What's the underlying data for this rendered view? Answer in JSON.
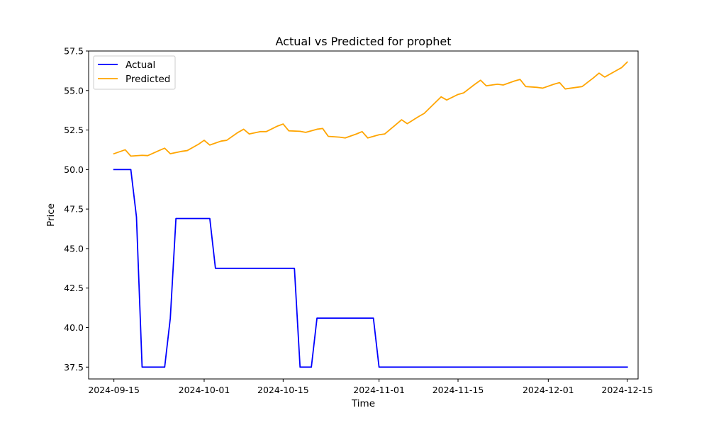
{
  "chart_data": {
    "type": "line",
    "title": "Actual vs Predicted for prophet",
    "xlabel": "Time",
    "ylabel": "Price",
    "xlim": [
      "2024-09-15",
      "2024-12-15"
    ],
    "ylim": [
      36.75,
      57.5
    ],
    "xticks": [
      "2024-09-15",
      "2024-10-01",
      "2024-10-15",
      "2024-11-01",
      "2024-11-15",
      "2024-12-01",
      "2024-12-15"
    ],
    "yticks": [
      "37.5",
      "40.0",
      "42.5",
      "45.0",
      "47.5",
      "50.0",
      "52.5",
      "55.0",
      "57.5"
    ],
    "grid": false,
    "legend_position": "upper left",
    "series": [
      {
        "name": "Actual",
        "color": "#0000ff",
        "points": [
          [
            "2024-09-15",
            50.0
          ],
          [
            "2024-09-18",
            50.0
          ],
          [
            "2024-09-19",
            47.0
          ],
          [
            "2024-09-20",
            37.5
          ],
          [
            "2024-09-24",
            37.5
          ],
          [
            "2024-09-25",
            40.6
          ],
          [
            "2024-09-26",
            46.9
          ],
          [
            "2024-10-02",
            46.9
          ],
          [
            "2024-10-03",
            43.75
          ],
          [
            "2024-10-17",
            43.75
          ],
          [
            "2024-10-18",
            37.5
          ],
          [
            "2024-10-20",
            37.5
          ],
          [
            "2024-10-21",
            40.6
          ],
          [
            "2024-10-31",
            40.6
          ],
          [
            "2024-11-01",
            37.5
          ],
          [
            "2024-12-15",
            37.5
          ]
        ]
      },
      {
        "name": "Predicted",
        "color": "#ffa500",
        "points": [
          [
            "2024-09-15",
            51.0
          ],
          [
            "2024-09-17",
            51.25
          ],
          [
            "2024-09-18",
            50.85
          ],
          [
            "2024-09-20",
            50.9
          ],
          [
            "2024-09-21",
            50.88
          ],
          [
            "2024-09-23",
            51.2
          ],
          [
            "2024-09-24",
            51.35
          ],
          [
            "2024-09-25",
            51.0
          ],
          [
            "2024-09-27",
            51.15
          ],
          [
            "2024-09-28",
            51.2
          ],
          [
            "2024-09-30",
            51.6
          ],
          [
            "2024-10-01",
            51.85
          ],
          [
            "2024-10-02",
            51.55
          ],
          [
            "2024-10-04",
            51.8
          ],
          [
            "2024-10-05",
            51.85
          ],
          [
            "2024-10-07",
            52.35
          ],
          [
            "2024-10-08",
            52.55
          ],
          [
            "2024-10-09",
            52.25
          ],
          [
            "2024-10-11",
            52.4
          ],
          [
            "2024-10-12",
            52.4
          ],
          [
            "2024-10-14",
            52.75
          ],
          [
            "2024-10-15",
            52.88
          ],
          [
            "2024-10-16",
            52.45
          ],
          [
            "2024-10-18",
            52.42
          ],
          [
            "2024-10-19",
            52.35
          ],
          [
            "2024-10-21",
            52.55
          ],
          [
            "2024-10-22",
            52.6
          ],
          [
            "2024-10-23",
            52.1
          ],
          [
            "2024-10-25",
            52.05
          ],
          [
            "2024-10-26",
            52.0
          ],
          [
            "2024-10-28",
            52.25
          ],
          [
            "2024-10-29",
            52.4
          ],
          [
            "2024-10-30",
            52.0
          ],
          [
            "2024-11-01",
            52.2
          ],
          [
            "2024-11-02",
            52.25
          ],
          [
            "2024-11-04",
            52.85
          ],
          [
            "2024-11-05",
            53.15
          ],
          [
            "2024-11-06",
            52.9
          ],
          [
            "2024-11-08",
            53.35
          ],
          [
            "2024-11-09",
            53.55
          ],
          [
            "2024-11-11",
            54.25
          ],
          [
            "2024-11-12",
            54.6
          ],
          [
            "2024-11-13",
            54.4
          ],
          [
            "2024-11-15",
            54.75
          ],
          [
            "2024-11-16",
            54.85
          ],
          [
            "2024-11-18",
            55.4
          ],
          [
            "2024-11-19",
            55.65
          ],
          [
            "2024-11-20",
            55.3
          ],
          [
            "2024-11-22",
            55.4
          ],
          [
            "2024-11-23",
            55.35
          ],
          [
            "2024-11-25",
            55.6
          ],
          [
            "2024-11-26",
            55.7
          ],
          [
            "2024-11-27",
            55.25
          ],
          [
            "2024-11-29",
            55.2
          ],
          [
            "2024-11-30",
            55.15
          ],
          [
            "2024-12-02",
            55.4
          ],
          [
            "2024-12-03",
            55.5
          ],
          [
            "2024-12-04",
            55.1
          ],
          [
            "2024-12-06",
            55.2
          ],
          [
            "2024-12-07",
            55.25
          ],
          [
            "2024-12-09",
            55.8
          ],
          [
            "2024-12-10",
            56.1
          ],
          [
            "2024-12-11",
            55.85
          ],
          [
            "2024-12-13",
            56.25
          ],
          [
            "2024-12-14",
            56.45
          ],
          [
            "2024-12-15",
            56.8
          ]
        ]
      }
    ]
  }
}
